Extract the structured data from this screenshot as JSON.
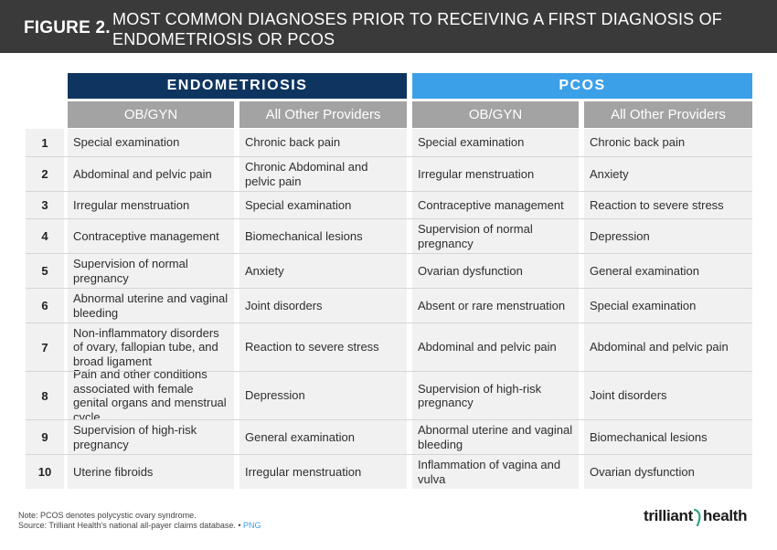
{
  "header": {
    "figure_label": "FIGURE 2.",
    "title": "MOST COMMON DIAGNOSES PRIOR TO RECEIVING A FIRST DIAGNOSIS OF ENDOMETRIOSIS OR PCOS"
  },
  "groups": {
    "endometriosis": "ENDOMETRIOSIS",
    "pcos": "PCOS"
  },
  "subheaders": [
    "OB/GYN",
    "All Other Providers",
    "OB/GYN",
    "All Other Providers"
  ],
  "rows": [
    {
      "num": "1",
      "cells": [
        "Special examination",
        "Chronic back pain",
        "Special examination",
        "Chronic back pain"
      ]
    },
    {
      "num": "2",
      "cells": [
        "Abdominal and pelvic pain",
        "Chronic Abdominal and pelvic pain",
        "Irregular menstruation",
        "Anxiety"
      ]
    },
    {
      "num": "3",
      "cells": [
        "Irregular menstruation",
        "Special examination",
        "Contraceptive management",
        "Reaction to severe stress"
      ]
    },
    {
      "num": "4",
      "cells": [
        "Contraceptive management",
        "Biomechanical lesions",
        "Supervision of normal pregnancy",
        "Depression"
      ]
    },
    {
      "num": "5",
      "cells": [
        "Supervision of normal pregnancy",
        "Anxiety",
        "Ovarian dysfunction",
        "General examination"
      ]
    },
    {
      "num": "6",
      "cells": [
        "Abnormal uterine and vaginal bleeding",
        "Joint disorders",
        "Absent or rare menstruation",
        "Special examination"
      ]
    },
    {
      "num": "7",
      "cells": [
        "Non-inflammatory disorders of ovary, fallopian tube, and broad ligament",
        "Reaction to severe stress",
        "Abdominal and pelvic pain",
        "Abdominal and pelvic pain"
      ]
    },
    {
      "num": "8",
      "cells": [
        "Pain and other conditions associated with female genital organs and menstrual cycle",
        "Depression",
        "Supervision of high-risk pregnancy",
        "Joint disorders"
      ]
    },
    {
      "num": "9",
      "cells": [
        "Supervision of high-risk pregnancy",
        "General examination",
        "Abnormal uterine and vaginal bleeding",
        "Biomechanical lesions"
      ]
    },
    {
      "num": "10",
      "cells": [
        "Uterine fibroids",
        "Irregular menstruation",
        "Inflammation of vagina and vulva",
        "Ovarian dysfunction"
      ]
    }
  ],
  "footer": {
    "note": "Note: PCOS denotes polycystic ovary syndrome.",
    "source": "Source: Trilliant Health's national all-payer claims database.",
    "separator": "•",
    "png_link": "PNG"
  },
  "logo": {
    "part1": "trilliant",
    "part2": "health"
  },
  "colors": {
    "header_bg": "#3a3a3a",
    "endometriosis": "#0e3560",
    "pcos": "#3ca0e8",
    "subheader": "#a3a3a3",
    "cell_bg": "#f1f1f1",
    "logo_accent": "#2aa37a"
  }
}
